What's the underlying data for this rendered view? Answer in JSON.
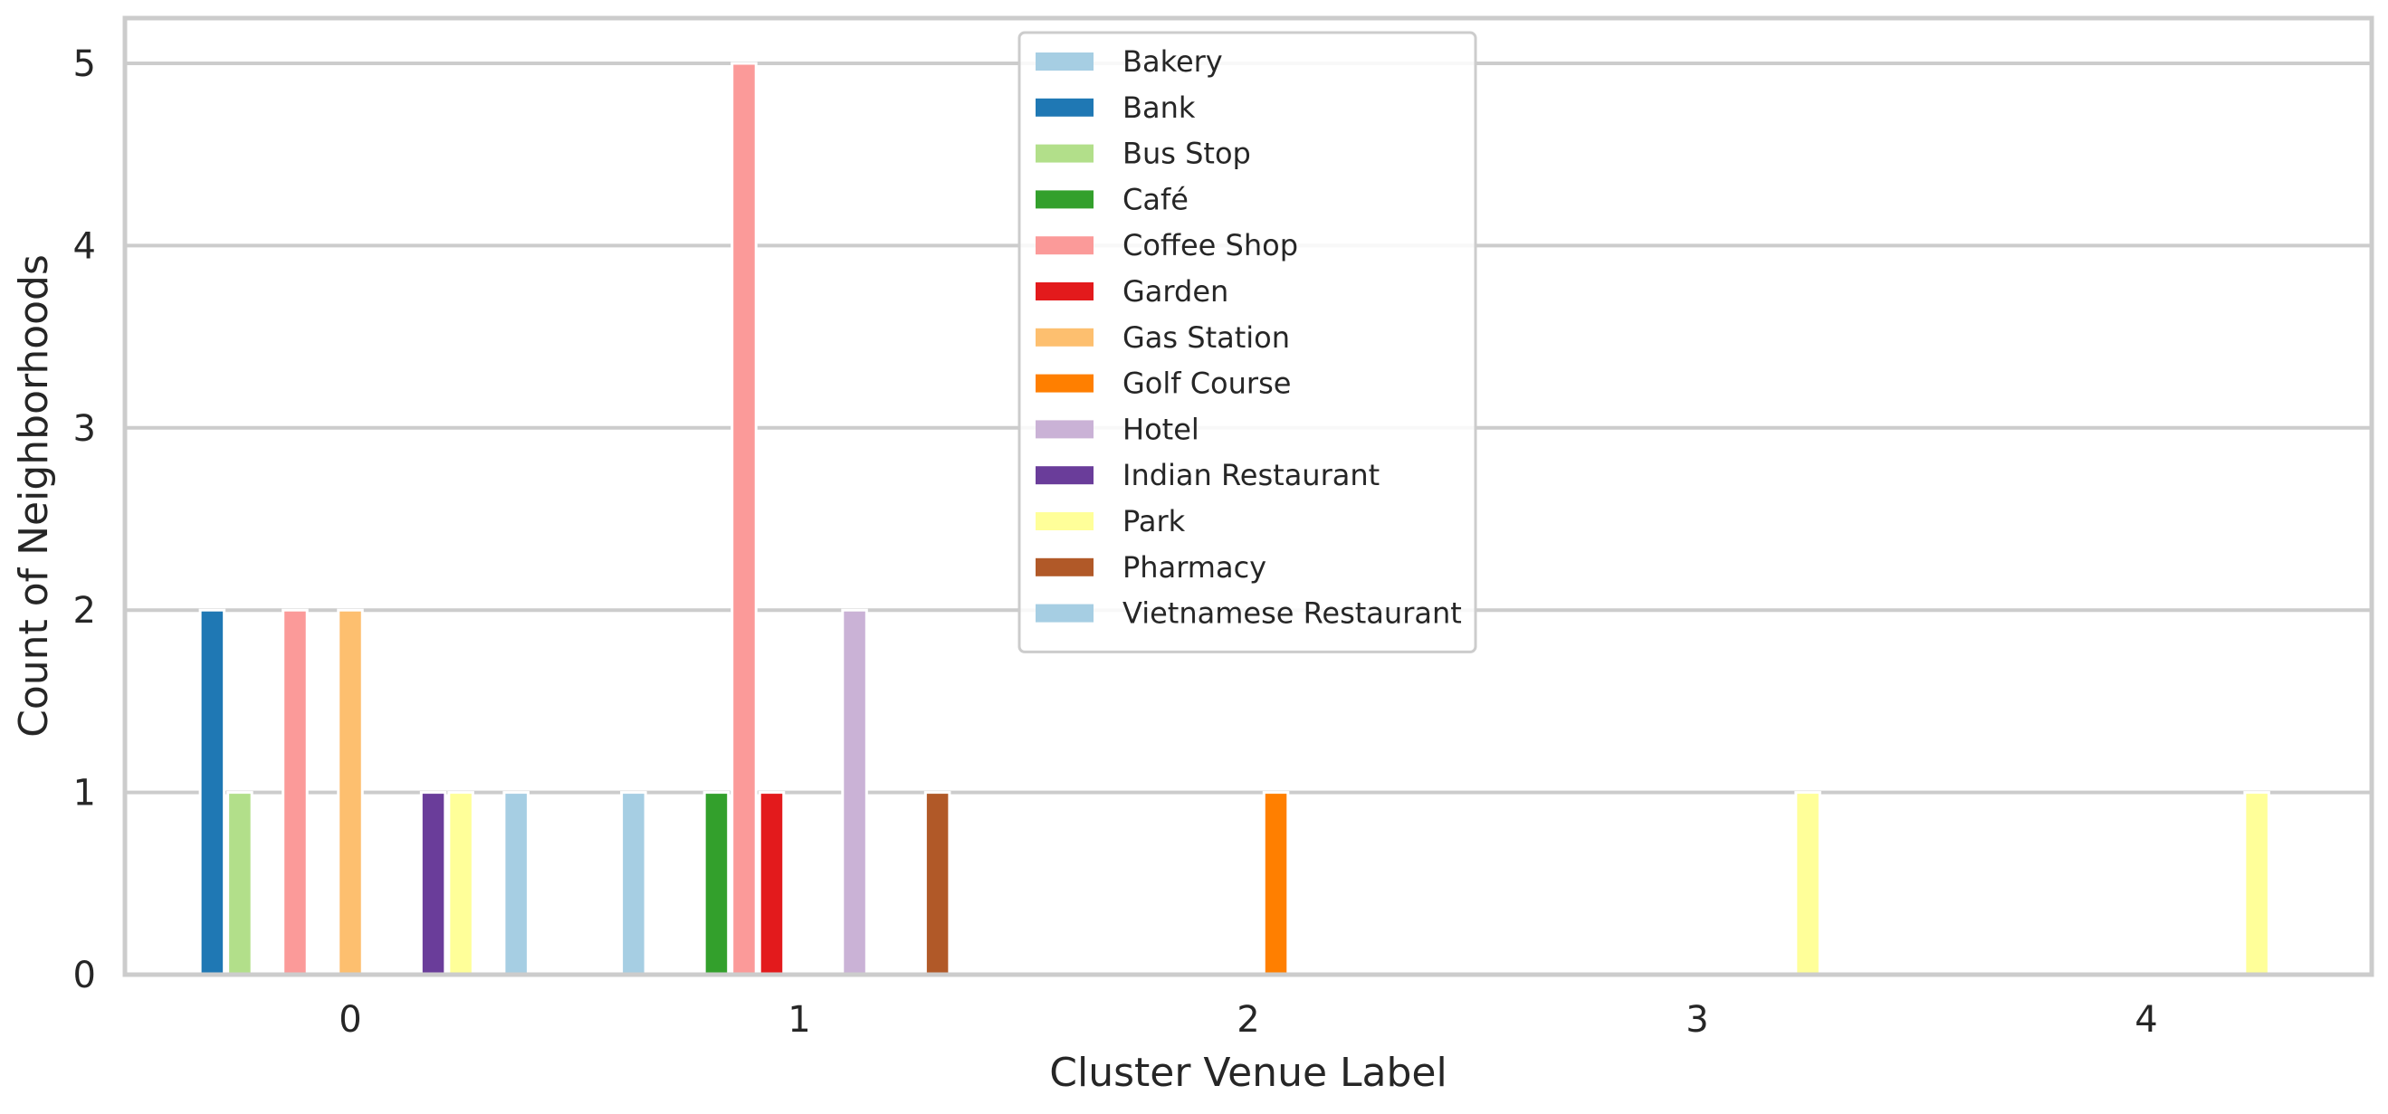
{
  "chart_data": {
    "type": "bar",
    "title": "",
    "xlabel": "Cluster Venue Label",
    "ylabel": "Count of Neighborhoods",
    "categories": [
      "0",
      "1",
      "2",
      "3",
      "4"
    ],
    "ylim": [
      0,
      5.25
    ],
    "yticks": [
      "0",
      "1",
      "2",
      "3",
      "4",
      "5"
    ],
    "grid": true,
    "legend_position": "top-center",
    "series": [
      {
        "name": "Bakery",
        "color": "#a6cee3",
        "values": [
          0,
          1,
          0,
          0,
          0
        ]
      },
      {
        "name": "Bank",
        "color": "#1f78b4",
        "values": [
          2,
          0,
          0,
          0,
          0
        ]
      },
      {
        "name": "Bus Stop",
        "color": "#b2df8a",
        "values": [
          1,
          0,
          0,
          0,
          0
        ]
      },
      {
        "name": "Café",
        "color": "#33a02c",
        "values": [
          0,
          1,
          0,
          0,
          0
        ]
      },
      {
        "name": "Coffee Shop",
        "color": "#fb9a99",
        "values": [
          2,
          5,
          0,
          0,
          0
        ]
      },
      {
        "name": "Garden",
        "color": "#e31a1c",
        "values": [
          0,
          1,
          0,
          0,
          0
        ]
      },
      {
        "name": "Gas Station",
        "color": "#fdbf6f",
        "values": [
          2,
          0,
          0,
          0,
          0
        ]
      },
      {
        "name": "Golf Course",
        "color": "#ff7f00",
        "values": [
          0,
          0,
          1,
          0,
          0
        ]
      },
      {
        "name": "Hotel",
        "color": "#cab2d6",
        "values": [
          0,
          2,
          0,
          0,
          0
        ]
      },
      {
        "name": "Indian Restaurant",
        "color": "#6a3d9a",
        "values": [
          1,
          0,
          0,
          0,
          0
        ]
      },
      {
        "name": "Park",
        "color": "#ffff99",
        "values": [
          1,
          0,
          0,
          1,
          1
        ]
      },
      {
        "name": "Pharmacy",
        "color": "#b15928",
        "values": [
          0,
          1,
          0,
          0,
          0
        ]
      },
      {
        "name": "Vietnamese Restaurant",
        "color": "#a6cee3",
        "values": [
          1,
          0,
          0,
          0,
          0
        ]
      }
    ]
  }
}
